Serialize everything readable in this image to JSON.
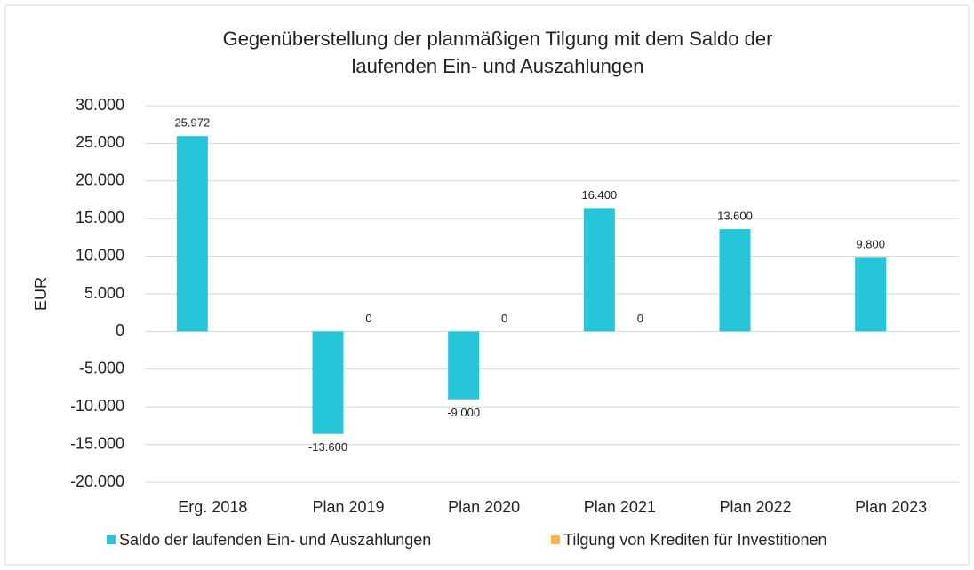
{
  "chart_data": {
    "type": "bar",
    "title": "Gegenüberstellung der planmäßigen Tilgung mit dem Saldo der",
    "subtitle": "laufenden Ein- und Auszahlungen",
    "ylabel": "EUR",
    "categories": [
      "Erg. 2018",
      "Plan 2019",
      "Plan 2020",
      "Plan 2021",
      "Plan 2022",
      "Plan 2023"
    ],
    "series": [
      {
        "name": "Saldo der laufenden Ein- und Auszahlungen",
        "color": "#26c6da",
        "values": [
          25972,
          -13600,
          -9000,
          16400,
          13600,
          9800
        ],
        "value_labels": [
          "25.972",
          "-13.600",
          "-9.000",
          "16.400",
          "13.600",
          "9.800"
        ]
      },
      {
        "name": "Tilgung von Krediten für Investitionen",
        "color": "#f9b640",
        "values": [
          null,
          0,
          0,
          0,
          null,
          null
        ],
        "value_labels": [
          null,
          "0",
          "0",
          "0",
          null,
          null
        ]
      }
    ],
    "ylim": [
      -20000,
      30000
    ],
    "yticks": [
      {
        "value": -20000,
        "label": "-20.000"
      },
      {
        "value": -15000,
        "label": "-15.000"
      },
      {
        "value": -10000,
        "label": "-10.000"
      },
      {
        "value": -5000,
        "label": "-5.000"
      },
      0,
      {
        "value": 5000,
        "label": "5.000"
      },
      {
        "value": 10000,
        "label": "10.000"
      },
      {
        "value": 15000,
        "label": "15.000"
      },
      {
        "value": 20000,
        "label": "20.000"
      },
      {
        "value": 25000,
        "label": "25.000"
      },
      {
        "value": 30000,
        "label": "30.000"
      }
    ],
    "grid": true,
    "legend": "bottom"
  }
}
